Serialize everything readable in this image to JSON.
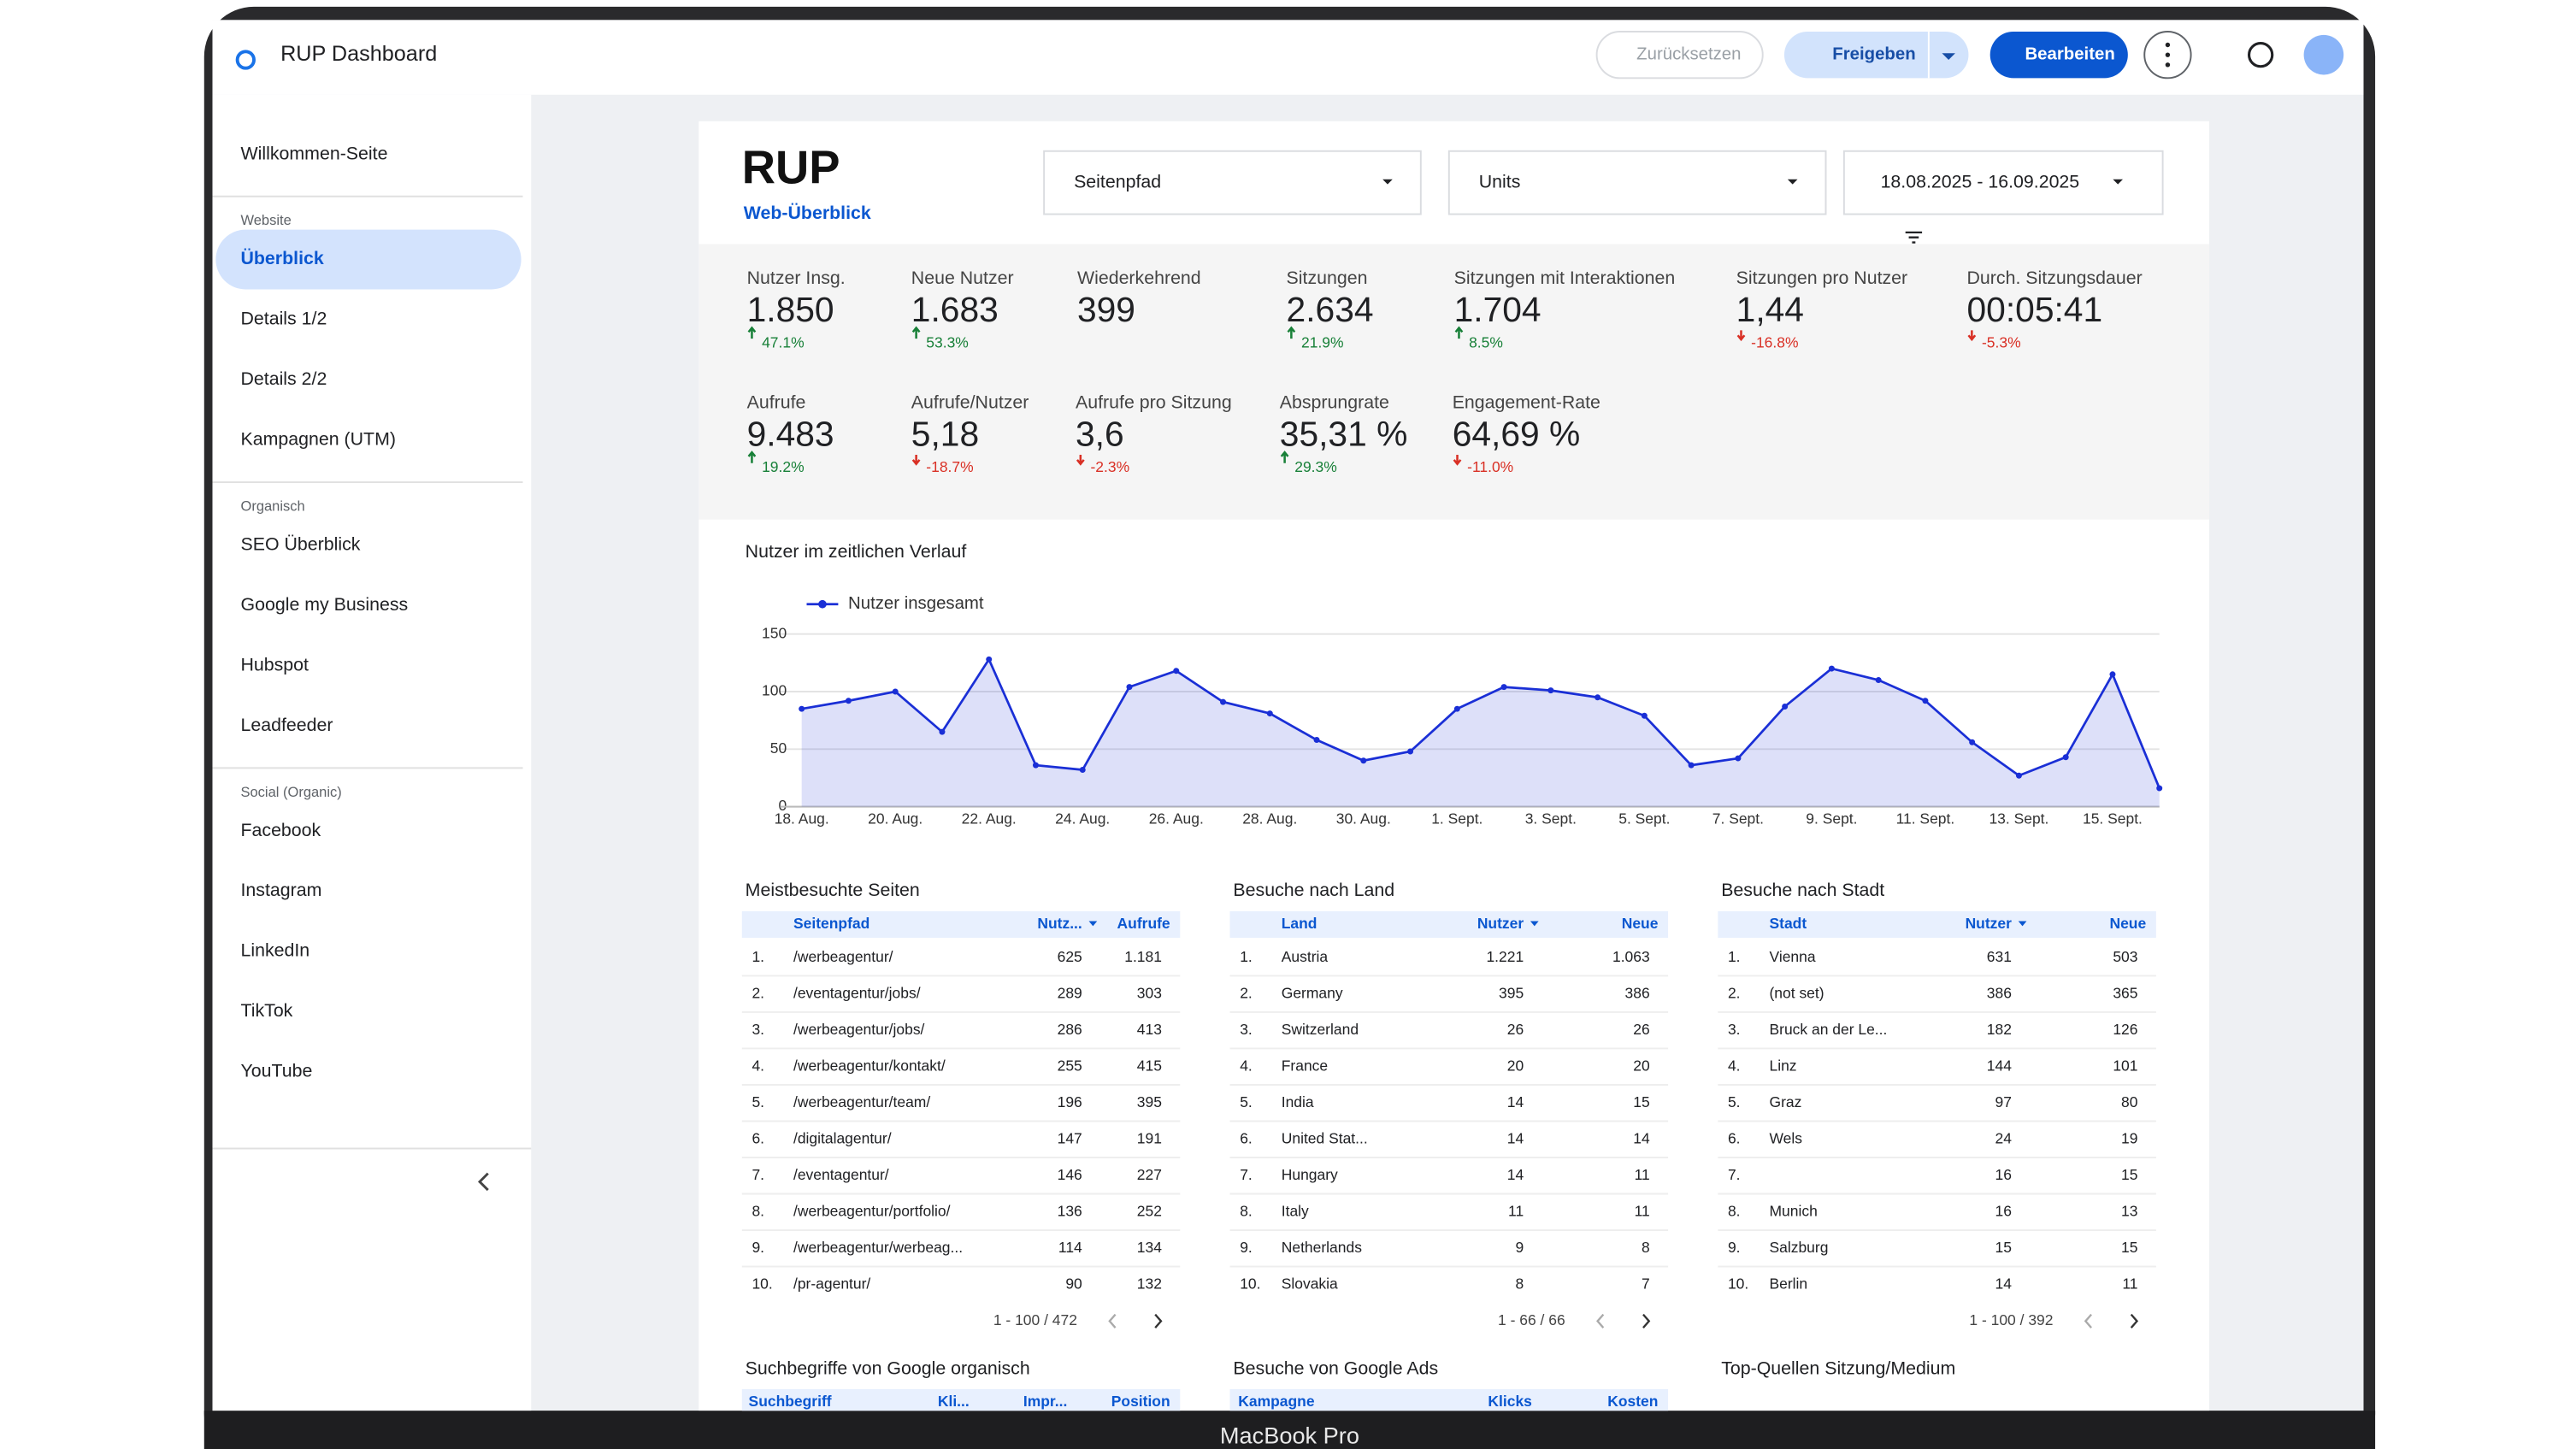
{
  "header": {
    "title": "RUP Dashboard",
    "buttons": [
      "Zurücksetzen",
      "Freigeben",
      "Bearbeiten"
    ]
  },
  "sidebar": {
    "items": [
      {
        "label": "Willkommen-Seite"
      },
      {
        "section": "Website"
      },
      {
        "label": "Überblick",
        "active": true
      },
      {
        "label": "Details 1/2"
      },
      {
        "label": "Details 2/2"
      },
      {
        "label": "Kampagnen (UTM)"
      },
      {
        "section": "Organisch"
      },
      {
        "label": "SEO Überblick"
      },
      {
        "label": "Google my Business"
      },
      {
        "label": "Hubspot"
      },
      {
        "label": "Leadfeeder"
      },
      {
        "section": "Social (Organic)"
      },
      {
        "label": "Facebook"
      },
      {
        "label": "Instagram"
      },
      {
        "label": "LinkedIn"
      },
      {
        "label": "TikTok"
      },
      {
        "label": "YouTube"
      }
    ]
  },
  "report": {
    "logo": "RUP",
    "subtitle": "Web-Überblick",
    "filters": [
      "Seitenpfad",
      "Units",
      "18.08.2025 - 16.09.2025"
    ]
  },
  "kpis": [
    {
      "label": "Nutzer Insg.",
      "value": "1.850",
      "change": "47.1%"
    },
    {
      "label": "Neue Nutzer",
      "value": "1.683",
      "change": "53.3%"
    },
    {
      "label": "Wiederkehrend",
      "value": "399"
    },
    {
      "label": "Sitzungen",
      "value": "2.634",
      "change": "21.9%"
    },
    {
      "label": "Sitzungen mit Interaktionen",
      "value": "1.704",
      "change": "8.5%"
    },
    {
      "label": "Sitzungen pro Nutzer",
      "value": "1,44",
      "change": "-16.8%"
    },
    {
      "label": "Durch. Sitzungsdauer",
      "value": "00:05:41",
      "change": "-5.3%"
    },
    {
      "label": "Aufrufe",
      "value": "9.483",
      "change": "19.2%"
    },
    {
      "label": "Aufrufe/Nutzer",
      "value": "5,18",
      "change": "-18.7%"
    },
    {
      "label": "Aufrufe pro Sitzung",
      "value": "3,6",
      "change": "-2.3%"
    },
    {
      "label": "Absprungrate",
      "value": "35,31 %",
      "change": "29.3%"
    },
    {
      "label": "Engagement-Rate",
      "value": "64,69 %",
      "change": "-11.0%"
    }
  ],
  "chart_data": {
    "type": "line",
    "title": "Nutzer im zeitlichen Verlauf",
    "categories": [
      "18. Aug.",
      null,
      "20. Aug.",
      null,
      "22. Aug.",
      null,
      "24. Aug.",
      null,
      "26. Aug.",
      null,
      "28. Aug.",
      null,
      "30. Aug.",
      null,
      "1. Sept.",
      null,
      "3. Sept.",
      null,
      "5. Sept.",
      null,
      "7. Sept.",
      null,
      "9. Sept.",
      null,
      "11. Sept.",
      null,
      "13. Sept.",
      null,
      "15. Sept.",
      null
    ],
    "series": [
      {
        "name": "Nutzer insgesamt",
        "color": "#1a2fd6",
        "values": [
          85,
          92,
          100,
          65,
          128,
          36,
          32,
          104,
          118,
          91,
          81,
          58,
          40,
          48,
          85,
          104,
          101,
          95,
          79,
          36,
          42,
          87,
          120,
          110,
          92,
          56,
          27,
          43,
          115,
          16
        ]
      }
    ],
    "ylim": [
      0,
      150
    ],
    "yticks": [
      0,
      50,
      100,
      150
    ],
    "grid": true,
    "legend": "top-left"
  },
  "tables": [
    {
      "title": "Meistbesuchte Seiten",
      "columns": [
        "Seitenpfad",
        "Nutz...",
        "Aufrufe"
      ],
      "rows": [
        [
          "1.",
          "/werbeagentur/",
          "625",
          "1.181"
        ],
        [
          "2.",
          "/eventagentur/jobs/",
          "289",
          "303"
        ],
        [
          "3.",
          "/werbeagentur/jobs/",
          "286",
          "413"
        ],
        [
          "4.",
          "/werbeagentur/kontakt/",
          "255",
          "415"
        ],
        [
          "5.",
          "/werbeagentur/team/",
          "196",
          "395"
        ],
        [
          "6.",
          "/digitalagentur/",
          "147",
          "191"
        ],
        [
          "7.",
          "/eventagentur/",
          "146",
          "227"
        ],
        [
          "8.",
          "/werbeagentur/portfolio/",
          "136",
          "252"
        ],
        [
          "9.",
          "/werbeagentur/werbeag...",
          "114",
          "134"
        ],
        [
          "10.",
          "/pr-agentur/",
          "90",
          "132"
        ]
      ],
      "pagination": "1 - 100 / 472"
    },
    {
      "title": "Besuche nach Land",
      "columns": [
        "Land",
        "Nutzer",
        "Neue"
      ],
      "rows": [
        [
          "1.",
          "Austria",
          "1.221",
          "1.063"
        ],
        [
          "2.",
          "Germany",
          "395",
          "386"
        ],
        [
          "3.",
          "Switzerland",
          "26",
          "26"
        ],
        [
          "4.",
          "France",
          "20",
          "20"
        ],
        [
          "5.",
          "India",
          "14",
          "15"
        ],
        [
          "6.",
          "United Stat...",
          "14",
          "14"
        ],
        [
          "7.",
          "Hungary",
          "14",
          "11"
        ],
        [
          "8.",
          "Italy",
          "11",
          "11"
        ],
        [
          "9.",
          "Netherlands",
          "9",
          "8"
        ],
        [
          "10.",
          "Slovakia",
          "8",
          "7"
        ]
      ],
      "pagination": "1 - 66 / 66"
    },
    {
      "title": "Besuche nach Stadt",
      "columns": [
        "Stadt",
        "Nutzer",
        "Neue"
      ],
      "rows": [
        [
          "1.",
          "Vienna",
          "631",
          "503"
        ],
        [
          "2.",
          "(not set)",
          "386",
          "365"
        ],
        [
          "3.",
          "Bruck an der Le...",
          "182",
          "126"
        ],
        [
          "4.",
          "Linz",
          "144",
          "101"
        ],
        [
          "5.",
          "Graz",
          "97",
          "80"
        ],
        [
          "6.",
          "Wels",
          "24",
          "19"
        ],
        [
          "7.",
          null,
          "16",
          "15"
        ],
        [
          "8.",
          "Munich",
          "16",
          "13"
        ],
        [
          "9.",
          "Salzburg",
          "15",
          "15"
        ],
        [
          "10.",
          "Berlin",
          "14",
          "11"
        ]
      ],
      "pagination": "1 - 100 / 392"
    }
  ],
  "bottom_tables": [
    {
      "title": "Suchbegriffe von Google organisch",
      "columns": [
        "Suchbegriff",
        "Kli...",
        "Impr...",
        "Position"
      ]
    },
    {
      "title": "Besuche von Google Ads",
      "columns": [
        "Kampagne",
        "Klicks",
        "Kosten"
      ]
    },
    {
      "title": "Top-Quellen Sitzung/Medium"
    }
  ],
  "device": {
    "label": "MacBook Pro"
  }
}
